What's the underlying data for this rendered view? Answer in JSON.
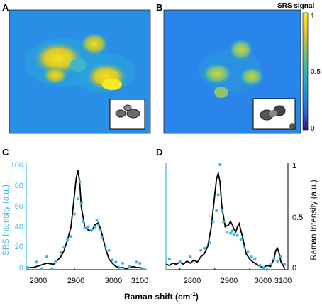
{
  "panels": {
    "A": "A",
    "B": "B",
    "C": "C",
    "D": "D"
  },
  "colorbar": {
    "title": "SRS signal",
    "ticks": [
      "1",
      "0.5",
      "0"
    ]
  },
  "colors": {
    "srs": "#3fb4e6",
    "raman": "#000000",
    "srs_axis": "#3fb4e6",
    "cmap": [
      "#2d1b7a",
      "#2e5fe0",
      "#1f8fd8",
      "#1fb1c4",
      "#4fc38a",
      "#b6c13a",
      "#f2d126",
      "#f9f21c"
    ]
  },
  "spectra": {
    "x_label": "Raman shift (cm",
    "x_label_sup": "-1",
    "x_label_end": ")",
    "left_ylabel": "SRS Intensity (a.u.)",
    "right_ylabel": "Raman Intensity (a.u.)",
    "x_ticks": [
      "2800",
      "2900",
      "3000",
      "3100"
    ],
    "left_ticks": [
      "0",
      "20",
      "40",
      "60",
      "80",
      "100"
    ],
    "right_ticks": [
      "0",
      "0.5",
      "1"
    ]
  },
  "chart_data": [
    {
      "panel": "C",
      "type": "line",
      "xlim": [
        2760,
        3110
      ],
      "ylim": [
        0,
        100
      ],
      "series": [
        {
          "kind": "line",
          "x": [
            2760,
            2780,
            2800,
            2820,
            2840,
            2860,
            2870,
            2880,
            2890,
            2900,
            2905,
            2910,
            2915,
            2920,
            2930,
            2940,
            2950,
            2960,
            2970,
            2980,
            2990,
            3000,
            3010,
            3020,
            3030,
            3040,
            3050,
            3060,
            3070,
            3080,
            3090,
            3100
          ],
          "values": [
            2,
            2,
            4,
            6,
            5,
            12,
            18,
            28,
            40,
            70,
            85,
            93,
            82,
            58,
            40,
            37,
            36,
            42,
            44,
            33,
            20,
            10,
            6,
            3,
            2,
            2,
            1,
            2,
            3,
            2,
            2,
            1
          ]
        },
        {
          "kind": "points",
          "x": [
            2765,
            2790,
            2805,
            2820,
            2835,
            2845,
            2860,
            2870,
            2880,
            2890,
            2900,
            2910,
            2915,
            2920,
            2925,
            2930,
            2940,
            2950,
            2960,
            2965,
            2970,
            2975,
            2980,
            2990,
            3000,
            3010,
            3020,
            3030,
            3040,
            3060,
            3080,
            3090,
            3100
          ],
          "values": [
            2,
            7,
            1,
            12,
            1,
            8,
            16,
            21,
            28,
            31,
            52,
            66,
            82,
            62,
            45,
            39,
            40,
            37,
            40,
            46,
            42,
            37,
            30,
            21,
            18,
            9,
            7,
            2,
            6,
            3,
            7,
            6,
            1
          ]
        }
      ]
    },
    {
      "panel": "D",
      "type": "line",
      "xlim": [
        2760,
        3110
      ],
      "ylim": [
        0,
        1
      ],
      "series": [
        {
          "kind": "line",
          "x": [
            2760,
            2770,
            2780,
            2790,
            2800,
            2810,
            2820,
            2830,
            2840,
            2850,
            2860,
            2870,
            2880,
            2890,
            2900,
            2905,
            2910,
            2915,
            2920,
            2930,
            2940,
            2945,
            2950,
            2955,
            2960,
            2965,
            2970,
            2980,
            2990,
            3000,
            3010,
            3020,
            3030,
            3040,
            3050,
            3060,
            3070,
            3075,
            3080,
            3085,
            3090,
            3100
          ],
          "values": [
            0.05,
            0.04,
            0.06,
            0.05,
            0.07,
            0.05,
            0.08,
            0.06,
            0.09,
            0.07,
            0.12,
            0.15,
            0.22,
            0.4,
            0.7,
            0.85,
            0.9,
            0.82,
            0.6,
            0.4,
            0.42,
            0.45,
            0.42,
            0.38,
            0.35,
            0.4,
            0.43,
            0.3,
            0.15,
            0.1,
            0.07,
            0.05,
            0.03,
            0.02,
            0.04,
            0.03,
            0.1,
            0.18,
            0.2,
            0.15,
            0.07,
            0.02
          ]
        },
        {
          "kind": "points",
          "x": [
            2770,
            2800,
            2830,
            2860,
            2870,
            2885,
            2895,
            2905,
            2910,
            2915,
            2920,
            2925,
            2935,
            2945,
            2950,
            2955,
            2965,
            2975,
            2985,
            2995,
            3005,
            3015,
            3030,
            3040,
            3050,
            3060,
            3070,
            3080,
            3090,
            3100
          ],
          "values": [
            0.1,
            0.08,
            0.12,
            0.18,
            0.2,
            0.25,
            0.45,
            0.55,
            0.7,
            0.98,
            0.55,
            0.45,
            0.35,
            0.34,
            0.36,
            0.33,
            0.32,
            0.28,
            0.21,
            0.17,
            0.12,
            0.1,
            0.04,
            0.02,
            0.0,
            0.05,
            0.1,
            0.08,
            0.12,
            0.05
          ]
        }
      ]
    }
  ]
}
